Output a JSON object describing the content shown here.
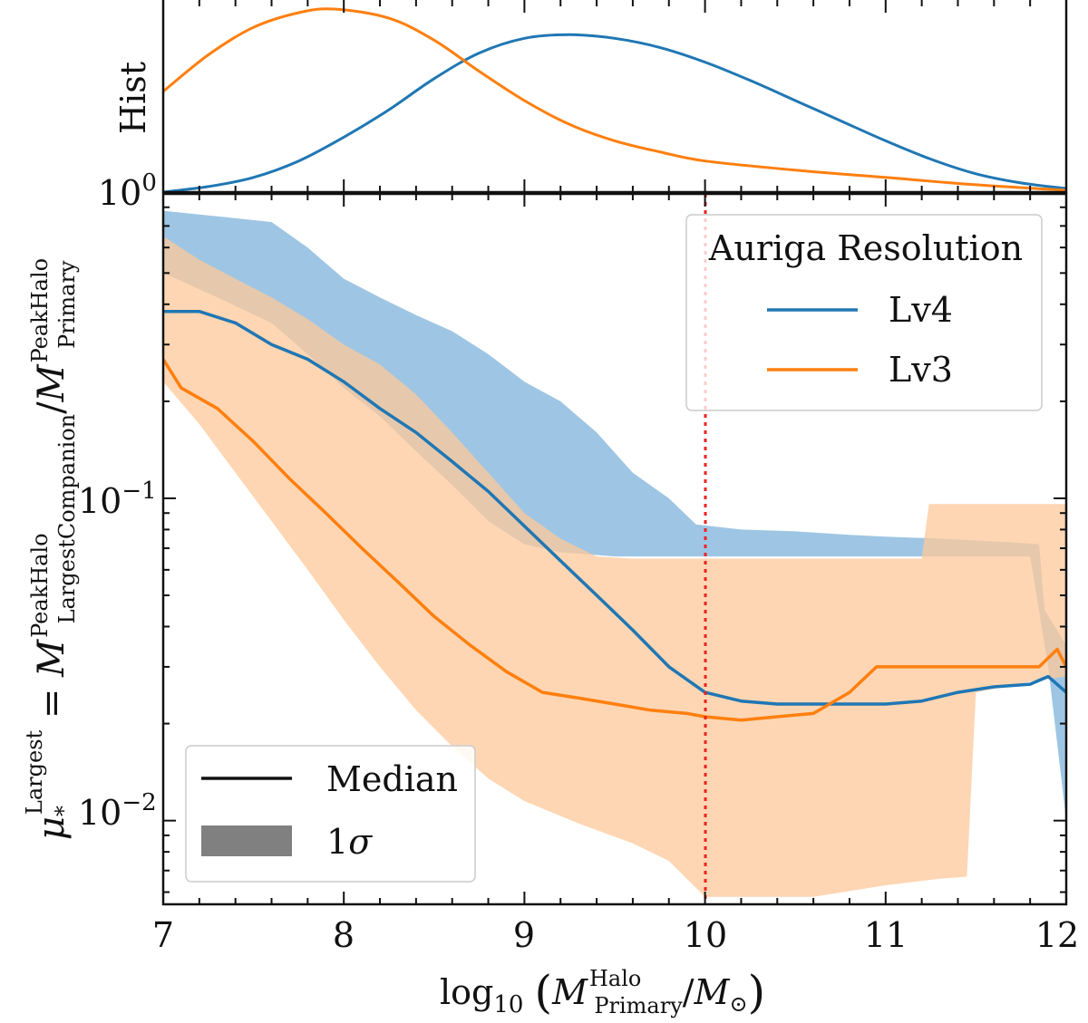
{
  "chart_data": [
    {
      "id": "hist_panel",
      "type": "line",
      "ylabel": "Hist",
      "ytick_label": "10",
      "ytick_exp": "0",
      "xlim": [
        7,
        12
      ],
      "ylim": [
        0,
        1.0
      ],
      "series": [
        {
          "name": "Lv4",
          "color": "#1f77b4",
          "points": [
            [
              7.0,
              0.0
            ],
            [
              7.25,
              0.03
            ],
            [
              7.5,
              0.08
            ],
            [
              7.75,
              0.17
            ],
            [
              8.0,
              0.3
            ],
            [
              8.25,
              0.45
            ],
            [
              8.5,
              0.62
            ],
            [
              8.75,
              0.76
            ],
            [
              9.0,
              0.84
            ],
            [
              9.25,
              0.86
            ],
            [
              9.5,
              0.84
            ],
            [
              9.75,
              0.79
            ],
            [
              10.0,
              0.71
            ],
            [
              10.25,
              0.61
            ],
            [
              10.5,
              0.5
            ],
            [
              10.75,
              0.39
            ],
            [
              11.0,
              0.28
            ],
            [
              11.25,
              0.18
            ],
            [
              11.5,
              0.1
            ],
            [
              11.75,
              0.05
            ],
            [
              12.0,
              0.02
            ]
          ]
        },
        {
          "name": "Lv3",
          "color": "#ff7f0e",
          "points": [
            [
              7.0,
              0.55
            ],
            [
              7.25,
              0.75
            ],
            [
              7.5,
              0.9
            ],
            [
              7.75,
              0.98
            ],
            [
              7.95,
              1.0
            ],
            [
              8.25,
              0.95
            ],
            [
              8.5,
              0.83
            ],
            [
              8.75,
              0.66
            ],
            [
              9.0,
              0.5
            ],
            [
              9.25,
              0.37
            ],
            [
              9.5,
              0.28
            ],
            [
              9.75,
              0.22
            ],
            [
              10.0,
              0.17
            ],
            [
              10.5,
              0.12
            ],
            [
              11.0,
              0.08
            ],
            [
              11.5,
              0.04
            ],
            [
              12.0,
              0.01
            ]
          ]
        }
      ]
    },
    {
      "id": "main_panel",
      "type": "line",
      "xlabel": "log10 (M_Primary^Halo / M_sun)",
      "ylabel": "mu_*^Largest = M_LargestCompanion^PeakHalo / M_Primary^PeakHalo",
      "xlim": [
        7,
        12
      ],
      "ylim": [
        0.0055,
        0.88
      ],
      "yscale": "log",
      "xticks": [
        "7",
        "8",
        "9",
        "10",
        "11",
        "12"
      ],
      "yticks": [
        {
          "value": 0.01,
          "base": "10",
          "exp": "−2"
        },
        {
          "value": 0.1,
          "base": "10",
          "exp": "−1"
        }
      ],
      "vline": {
        "x": 10.0,
        "color": "#ee2222",
        "style": "dotted"
      },
      "legend_resolution": {
        "title": "Auriga Resolution",
        "placement": "upper right",
        "entries": [
          {
            "label": "Lv4",
            "color": "#1f77b4"
          },
          {
            "label": "Lv3",
            "color": "#ff7f0e"
          }
        ]
      },
      "legend_style": {
        "placement": "lower left",
        "entries": [
          {
            "label": "Median",
            "kind": "line"
          },
          {
            "label": "1",
            "sigma": "σ",
            "kind": "band"
          }
        ]
      },
      "series": [
        {
          "name": "Lv4 1σ",
          "kind": "band",
          "color": "#9ec6e4",
          "upper": [
            [
              7.0,
              0.78
            ],
            [
              7.3,
              0.75
            ],
            [
              7.6,
              0.72
            ],
            [
              7.8,
              0.6
            ],
            [
              8.0,
              0.48
            ],
            [
              8.2,
              0.42
            ],
            [
              8.4,
              0.37
            ],
            [
              8.6,
              0.33
            ],
            [
              8.8,
              0.28
            ],
            [
              9.0,
              0.23
            ],
            [
              9.2,
              0.2
            ],
            [
              9.4,
              0.16
            ],
            [
              9.6,
              0.12
            ],
            [
              9.8,
              0.1
            ],
            [
              9.95,
              0.083
            ],
            [
              10.2,
              0.08
            ],
            [
              10.5,
              0.079
            ],
            [
              10.8,
              0.077
            ],
            [
              11.0,
              0.076
            ],
            [
              11.3,
              0.075
            ],
            [
              11.7,
              0.073
            ],
            [
              11.85,
              0.072
            ],
            [
              11.88,
              0.045
            ],
            [
              12.0,
              0.035
            ]
          ],
          "lower": [
            [
              7.0,
              0.5
            ],
            [
              7.3,
              0.42
            ],
            [
              7.6,
              0.35
            ],
            [
              7.8,
              0.28
            ],
            [
              8.0,
              0.22
            ],
            [
              8.2,
              0.18
            ],
            [
              8.4,
              0.14
            ],
            [
              8.6,
              0.11
            ],
            [
              8.8,
              0.085
            ],
            [
              9.0,
              0.072
            ],
            [
              9.2,
              0.068
            ],
            [
              9.5,
              0.066
            ],
            [
              9.7,
              0.066
            ],
            [
              9.9,
              0.066
            ],
            [
              10.5,
              0.066
            ],
            [
              11.0,
              0.066
            ],
            [
              11.7,
              0.066
            ],
            [
              11.8,
              0.066
            ],
            [
              11.9,
              0.03
            ],
            [
              12.0,
              0.01
            ]
          ]
        },
        {
          "name": "Lv3 1σ",
          "kind": "band",
          "color": "#fdc89a",
          "upper": [
            [
              7.0,
              0.65
            ],
            [
              7.2,
              0.55
            ],
            [
              7.4,
              0.48
            ],
            [
              7.6,
              0.42
            ],
            [
              7.8,
              0.36
            ],
            [
              8.0,
              0.3
            ],
            [
              8.2,
              0.26
            ],
            [
              8.4,
              0.21
            ],
            [
              8.6,
              0.16
            ],
            [
              8.8,
              0.12
            ],
            [
              9.0,
              0.09
            ],
            [
              9.2,
              0.075
            ],
            [
              9.4,
              0.066
            ],
            [
              9.6,
              0.065
            ],
            [
              9.8,
              0.065
            ],
            [
              10.0,
              0.065
            ],
            [
              10.5,
              0.065
            ],
            [
              11.0,
              0.065
            ],
            [
              11.2,
              0.065
            ],
            [
              11.24,
              0.096
            ],
            [
              12.0,
              0.096
            ]
          ],
          "lower": [
            [
              7.0,
              0.23
            ],
            [
              7.2,
              0.17
            ],
            [
              7.4,
              0.12
            ],
            [
              7.6,
              0.085
            ],
            [
              7.8,
              0.06
            ],
            [
              8.0,
              0.042
            ],
            [
              8.2,
              0.03
            ],
            [
              8.4,
              0.022
            ],
            [
              8.6,
              0.017
            ],
            [
              8.8,
              0.0135
            ],
            [
              9.0,
              0.0115
            ],
            [
              9.3,
              0.0098
            ],
            [
              9.6,
              0.0085
            ],
            [
              9.8,
              0.0075
            ],
            [
              10.0,
              0.0058
            ],
            [
              10.3,
              0.0058
            ],
            [
              10.6,
              0.0058
            ],
            [
              11.0,
              0.0063
            ],
            [
              11.3,
              0.0066
            ],
            [
              11.45,
              0.0067
            ],
            [
              11.5,
              0.025
            ],
            [
              11.8,
              0.027
            ],
            [
              12.0,
              0.028
            ]
          ]
        },
        {
          "name": "Lv4",
          "kind": "line",
          "color": "#1f77b4",
          "points": [
            [
              7.0,
              0.38
            ],
            [
              7.2,
              0.38
            ],
            [
              7.4,
              0.35
            ],
            [
              7.6,
              0.3
            ],
            [
              7.8,
              0.27
            ],
            [
              8.0,
              0.23
            ],
            [
              8.2,
              0.19
            ],
            [
              8.4,
              0.16
            ],
            [
              8.6,
              0.13
            ],
            [
              8.8,
              0.105
            ],
            [
              9.0,
              0.082
            ],
            [
              9.2,
              0.064
            ],
            [
              9.4,
              0.05
            ],
            [
              9.6,
              0.039
            ],
            [
              9.8,
              0.03
            ],
            [
              10.0,
              0.025
            ],
            [
              10.2,
              0.0235
            ],
            [
              10.4,
              0.023
            ],
            [
              10.6,
              0.023
            ],
            [
              10.8,
              0.023
            ],
            [
              11.0,
              0.023
            ],
            [
              11.2,
              0.0235
            ],
            [
              11.4,
              0.025
            ],
            [
              11.6,
              0.026
            ],
            [
              11.8,
              0.0265
            ],
            [
              11.9,
              0.028
            ],
            [
              12.0,
              0.025
            ]
          ]
        },
        {
          "name": "Lv3",
          "kind": "line",
          "color": "#ff7f0e",
          "points": [
            [
              7.0,
              0.27
            ],
            [
              7.1,
              0.22
            ],
            [
              7.3,
              0.19
            ],
            [
              7.5,
              0.15
            ],
            [
              7.7,
              0.115
            ],
            [
              7.9,
              0.09
            ],
            [
              8.1,
              0.07
            ],
            [
              8.3,
              0.055
            ],
            [
              8.5,
              0.043
            ],
            [
              8.7,
              0.035
            ],
            [
              8.9,
              0.029
            ],
            [
              9.1,
              0.025
            ],
            [
              9.3,
              0.024
            ],
            [
              9.5,
              0.023
            ],
            [
              9.7,
              0.022
            ],
            [
              9.9,
              0.0215
            ],
            [
              10.0,
              0.021
            ],
            [
              10.2,
              0.0205
            ],
            [
              10.4,
              0.021
            ],
            [
              10.6,
              0.0215
            ],
            [
              10.8,
              0.025
            ],
            [
              10.95,
              0.03
            ],
            [
              11.2,
              0.03
            ],
            [
              11.6,
              0.03
            ],
            [
              11.85,
              0.03
            ],
            [
              11.95,
              0.034
            ],
            [
              12.0,
              0.03
            ]
          ]
        }
      ]
    }
  ]
}
